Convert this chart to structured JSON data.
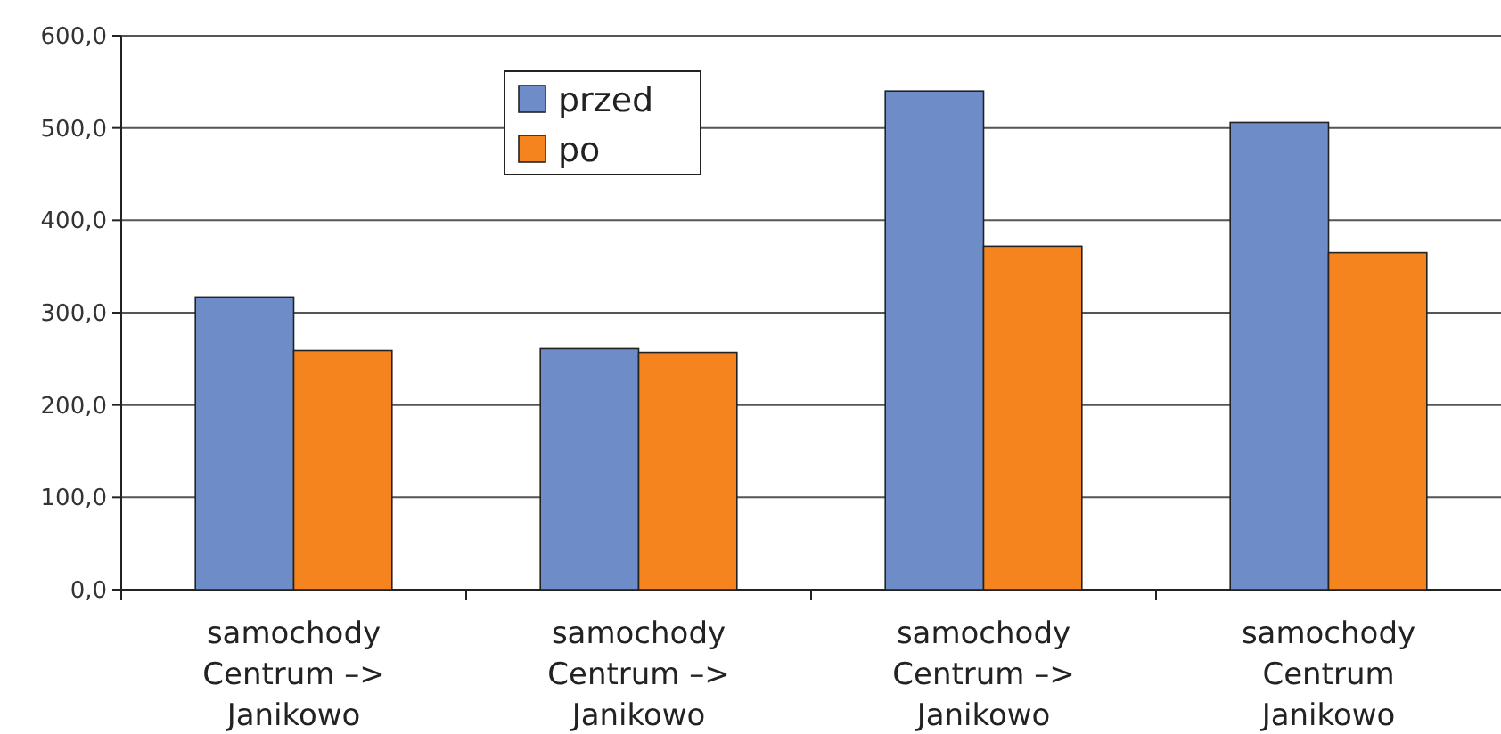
{
  "chart_data": {
    "type": "bar",
    "categories": [
      "samochody\nCentrum –>\nJanikowo",
      "samochody\nCentrum –>\nJanikowo",
      "samochody\nCentrum –>\nJanikowo",
      "samochody\nCentrum\nJanikowo"
    ],
    "series": [
      {
        "name": "przed",
        "color": "#6d8cc8",
        "values": [
          317,
          261,
          540,
          506
        ]
      },
      {
        "name": "po",
        "color": "#f5841f",
        "values": [
          259,
          257,
          372,
          365
        ]
      }
    ],
    "ylim": [
      0,
      600
    ],
    "yticks": [
      {
        "value": 0,
        "label": "0,0"
      },
      {
        "value": 100,
        "label": "100,0"
      },
      {
        "value": 200,
        "label": "200,0"
      },
      {
        "value": 300,
        "label": "300,0"
      },
      {
        "value": 400,
        "label": "400,0"
      },
      {
        "value": 500,
        "label": "500,0"
      },
      {
        "value": 600,
        "label": "600,0"
      }
    ],
    "grid": "y",
    "legend": "top left"
  }
}
